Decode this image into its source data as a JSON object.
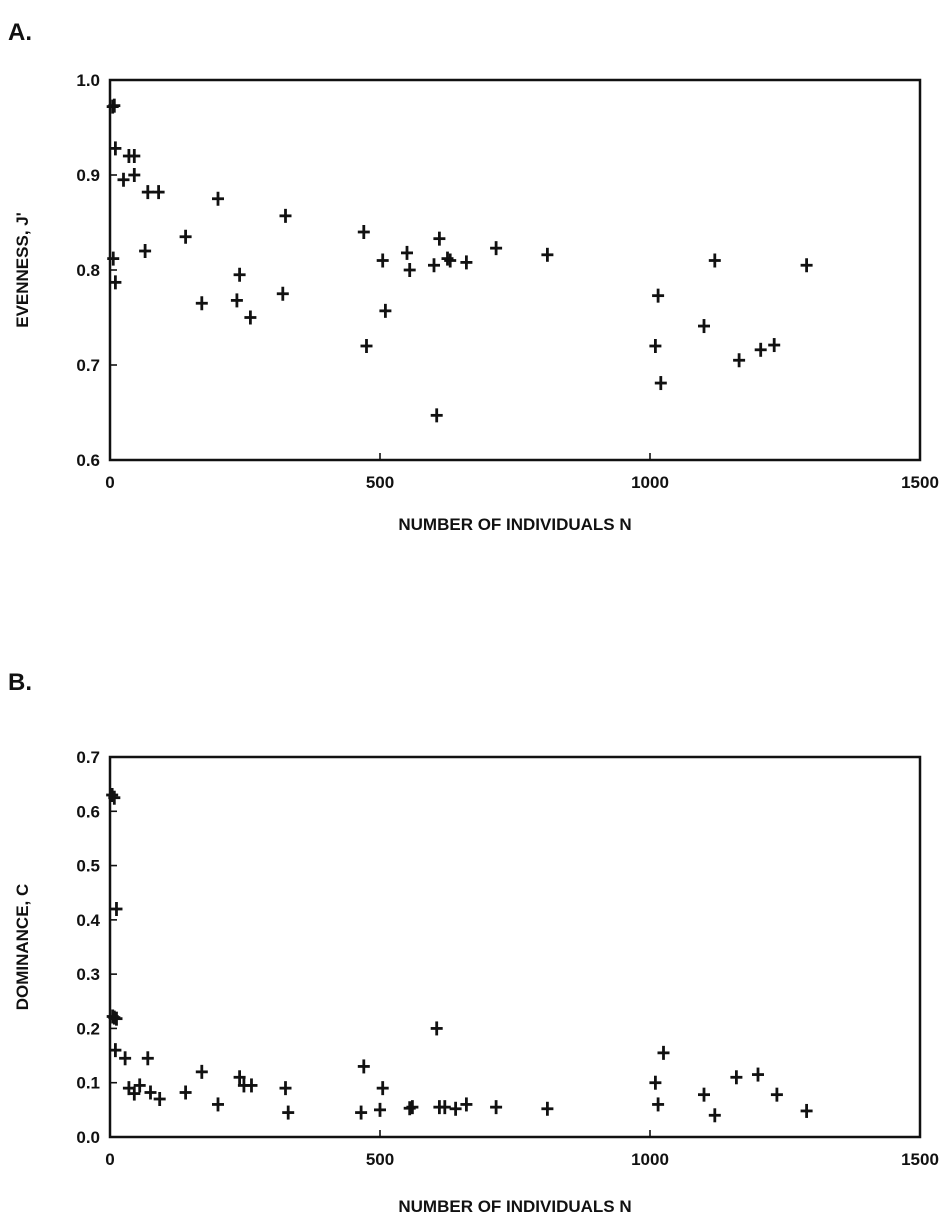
{
  "chart_data": [
    {
      "type": "scatter",
      "panel_label": "A.",
      "xlabel": "NUMBER OF INDIVIDUALS  N",
      "ylabel": "EVENNESS,  J'",
      "xlim": [
        0,
        1500
      ],
      "ylim": [
        0.6,
        1.0
      ],
      "xticks": [
        "0",
        "500",
        "1000",
        "1500"
      ],
      "yticks": [
        "0.6",
        "0.7",
        "0.8",
        "0.9",
        "1.0"
      ],
      "xtick_values": [
        0,
        500,
        1000,
        1500
      ],
      "ytick_values": [
        0.6,
        0.7,
        0.8,
        0.9,
        1.0
      ],
      "grid": false,
      "marker": "+",
      "points": [
        [
          5,
          0.972
        ],
        [
          8,
          0.973
        ],
        [
          10,
          0.928
        ],
        [
          6,
          0.812
        ],
        [
          10,
          0.787
        ],
        [
          25,
          0.895
        ],
        [
          35,
          0.92
        ],
        [
          45,
          0.92
        ],
        [
          45,
          0.9
        ],
        [
          70,
          0.882
        ],
        [
          90,
          0.882
        ],
        [
          65,
          0.82
        ],
        [
          140,
          0.835
        ],
        [
          200,
          0.875
        ],
        [
          170,
          0.765
        ],
        [
          240,
          0.795
        ],
        [
          235,
          0.768
        ],
        [
          260,
          0.75
        ],
        [
          325,
          0.857
        ],
        [
          320,
          0.775
        ],
        [
          470,
          0.84
        ],
        [
          475,
          0.72
        ],
        [
          505,
          0.81
        ],
        [
          510,
          0.757
        ],
        [
          550,
          0.818
        ],
        [
          555,
          0.8
        ],
        [
          600,
          0.805
        ],
        [
          610,
          0.833
        ],
        [
          605,
          0.647
        ],
        [
          625,
          0.812
        ],
        [
          630,
          0.81
        ],
        [
          660,
          0.808
        ],
        [
          715,
          0.823
        ],
        [
          810,
          0.816
        ],
        [
          1010,
          0.72
        ],
        [
          1015,
          0.773
        ],
        [
          1020,
          0.681
        ],
        [
          1100,
          0.741
        ],
        [
          1120,
          0.81
        ],
        [
          1165,
          0.705
        ],
        [
          1205,
          0.716
        ],
        [
          1230,
          0.721
        ],
        [
          1290,
          0.805
        ]
      ]
    },
    {
      "type": "scatter",
      "panel_label": "B.",
      "xlabel": "NUMBER OF INDIVIDUALS  N",
      "ylabel": "DOMINANCE,  C",
      "xlim": [
        0,
        1500
      ],
      "ylim": [
        0.0,
        0.7
      ],
      "xticks": [
        "0",
        "500",
        "1000",
        "1500"
      ],
      "yticks": [
        "0.0",
        "0.1",
        "0.2",
        "0.3",
        "0.4",
        "0.5",
        "0.6",
        "0.7"
      ],
      "xtick_values": [
        0,
        500,
        1000,
        1500
      ],
      "ytick_values": [
        0.0,
        0.1,
        0.2,
        0.3,
        0.4,
        0.5,
        0.6,
        0.7
      ],
      "grid": false,
      "marker": "+",
      "points": [
        [
          4,
          0.63
        ],
        [
          8,
          0.625
        ],
        [
          12,
          0.42
        ],
        [
          5,
          0.222
        ],
        [
          8,
          0.22
        ],
        [
          12,
          0.218
        ],
        [
          10,
          0.16
        ],
        [
          28,
          0.145
        ],
        [
          35,
          0.09
        ],
        [
          45,
          0.08
        ],
        [
          55,
          0.095
        ],
        [
          70,
          0.145
        ],
        [
          75,
          0.082
        ],
        [
          92,
          0.07
        ],
        [
          140,
          0.082
        ],
        [
          170,
          0.12
        ],
        [
          200,
          0.06
        ],
        [
          240,
          0.11
        ],
        [
          248,
          0.095
        ],
        [
          262,
          0.095
        ],
        [
          325,
          0.09
        ],
        [
          330,
          0.045
        ],
        [
          470,
          0.13
        ],
        [
          465,
          0.045
        ],
        [
          500,
          0.05
        ],
        [
          505,
          0.09
        ],
        [
          555,
          0.053
        ],
        [
          560,
          0.055
        ],
        [
          605,
          0.2
        ],
        [
          610,
          0.055
        ],
        [
          620,
          0.055
        ],
        [
          640,
          0.052
        ],
        [
          660,
          0.06
        ],
        [
          715,
          0.055
        ],
        [
          810,
          0.052
        ],
        [
          1010,
          0.1
        ],
        [
          1015,
          0.06
        ],
        [
          1025,
          0.155
        ],
        [
          1100,
          0.078
        ],
        [
          1120,
          0.04
        ],
        [
          1160,
          0.11
        ],
        [
          1200,
          0.115
        ],
        [
          1235,
          0.078
        ],
        [
          1290,
          0.048
        ]
      ]
    }
  ]
}
